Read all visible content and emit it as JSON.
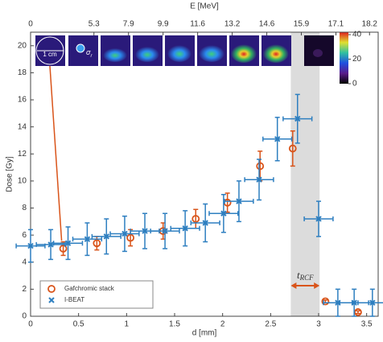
{
  "chart_data": {
    "type": "scatter",
    "xlabel": "d [mm]",
    "ylabel": "Dose [Gy]",
    "x2label": "E [MeV]",
    "xlim": [
      0,
      3.62
    ],
    "ylim": [
      0,
      21
    ],
    "xticks": [
      0,
      0.5,
      1,
      1.5,
      2,
      2.5,
      3,
      3.5
    ],
    "yticks": [
      0,
      2,
      4,
      6,
      8,
      10,
      12,
      14,
      16,
      18,
      20
    ],
    "x2ticks": [
      {
        "value": 0,
        "label": "0"
      },
      {
        "value": 0.66,
        "label": "5.3"
      },
      {
        "value": 1.02,
        "label": "7.9"
      },
      {
        "value": 1.38,
        "label": "9.9"
      },
      {
        "value": 1.74,
        "label": "11.6"
      },
      {
        "value": 2.1,
        "label": "13.2"
      },
      {
        "value": 2.46,
        "label": "14.6"
      },
      {
        "value": 2.82,
        "label": "15.9"
      },
      {
        "value": 3.18,
        "label": "17.1"
      },
      {
        "value": 3.53,
        "label": "18.2"
      }
    ],
    "shaded_band": [
      2.71,
      3.01
    ],
    "band_label": {
      "main": "t",
      "sub": "RCF"
    },
    "inset_labels": {
      "scale": "1 cm",
      "sigma": "σ",
      "sigma_sub": "r"
    },
    "colorbar": {
      "lim": [
        0,
        42
      ],
      "ticks": [
        0,
        20,
        40
      ]
    },
    "legend": "lower left",
    "series": [
      {
        "name": "Gafchromic stack",
        "color": "#d9541a",
        "marker": "circle",
        "x": [
          0.34,
          0.69,
          1.04,
          1.38,
          1.72,
          2.05,
          2.39,
          2.73,
          3.07,
          3.41
        ],
        "values": [
          5.0,
          5.4,
          5.8,
          6.3,
          7.2,
          8.4,
          11.1,
          12.4,
          1.1,
          0.3
        ],
        "yerr": [
          0.5,
          0.5,
          0.6,
          0.6,
          0.7,
          0.7,
          1.1,
          1.3,
          0.1,
          0.1
        ]
      },
      {
        "name": "I-BEAT",
        "color": "#2e7fc0",
        "marker": "x",
        "x": [
          0,
          0.21,
          0.39,
          0.59,
          0.79,
          0.98,
          1.19,
          1.4,
          1.61,
          1.82,
          2.01,
          2.17,
          2.38,
          2.57,
          2.78,
          3.0,
          3.2,
          3.37,
          3.56
        ],
        "values": [
          5.2,
          5.3,
          5.4,
          5.7,
          5.9,
          6.1,
          6.3,
          6.3,
          6.5,
          6.9,
          7.6,
          8.5,
          10.1,
          13.1,
          14.6,
          7.2,
          1.0,
          1.0,
          1.0
        ],
        "yerr": [
          1.2,
          1.1,
          1.2,
          1.2,
          1.3,
          1.3,
          1.3,
          1.3,
          1.3,
          1.4,
          1.4,
          1.5,
          1.5,
          1.6,
          1.8,
          1.3,
          1.0,
          1.0,
          1.0
        ],
        "xerr": [
          0.15,
          0.15,
          0.15,
          0.15,
          0.15,
          0.15,
          0.15,
          0.15,
          0.15,
          0.15,
          0.15,
          0.15,
          0.15,
          0.15,
          0.15,
          0.15,
          0.15,
          0.15,
          0.15
        ]
      }
    ]
  }
}
